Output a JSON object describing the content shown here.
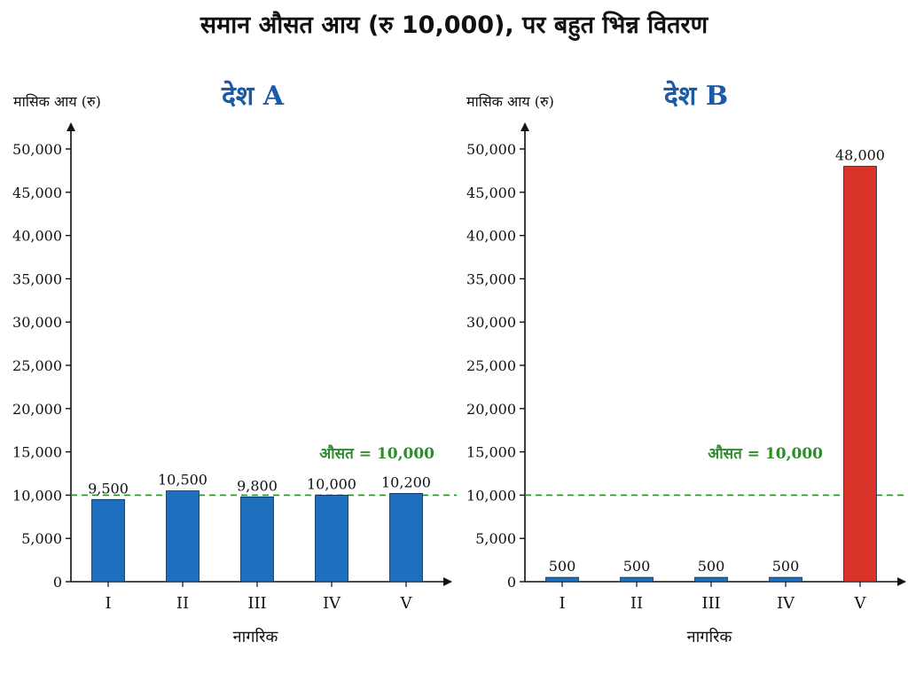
{
  "title": "समान औसत आय (रु 10,000), पर बहुत भिन्न वितरण",
  "colors": {
    "bar_blue": "#1f6fbf",
    "bar_red": "#d9332a",
    "mean_line": "#2e8b2e",
    "panel_title": "#1a5aa6",
    "axis": "#111111"
  },
  "chart_data": [
    {
      "type": "bar",
      "title": "देश A",
      "ylabel": "मासिक आय (रु)",
      "xlabel": "नागरिक",
      "categories": [
        "I",
        "II",
        "III",
        "IV",
        "V"
      ],
      "values": [
        9500,
        10500,
        9800,
        10000,
        10200
      ],
      "value_labels": [
        "9,500",
        "10,500",
        "9,800",
        "10,000",
        "10,200"
      ],
      "bar_colors": [
        "bar_blue",
        "bar_blue",
        "bar_blue",
        "bar_blue",
        "bar_blue"
      ],
      "ylim": [
        0,
        50000
      ],
      "yticks": [
        0,
        5000,
        10000,
        15000,
        20000,
        25000,
        30000,
        35000,
        40000,
        45000,
        50000
      ],
      "ytick_labels": [
        "0",
        "5,000",
        "10,000",
        "15,000",
        "20,000",
        "25,000",
        "30,000",
        "35,000",
        "40,000",
        "45,000",
        "50,000"
      ],
      "mean_value": 10000,
      "mean_label": "औसत = 10,000",
      "grid": false
    },
    {
      "type": "bar",
      "title": "देश B",
      "ylabel": "मासिक आय (रु)",
      "xlabel": "नागरिक",
      "categories": [
        "I",
        "II",
        "III",
        "IV",
        "V"
      ],
      "values": [
        500,
        500,
        500,
        500,
        48000
      ],
      "value_labels": [
        "500",
        "500",
        "500",
        "500",
        "48,000"
      ],
      "bar_colors": [
        "bar_blue",
        "bar_blue",
        "bar_blue",
        "bar_blue",
        "bar_red"
      ],
      "ylim": [
        0,
        50000
      ],
      "yticks": [
        0,
        5000,
        10000,
        15000,
        20000,
        25000,
        30000,
        35000,
        40000,
        45000,
        50000
      ],
      "ytick_labels": [
        "0",
        "5,000",
        "10,000",
        "15,000",
        "20,000",
        "25,000",
        "30,000",
        "35,000",
        "40,000",
        "45,000",
        "50,000"
      ],
      "mean_value": 10000,
      "mean_label": "औसत = 10,000",
      "grid": false
    }
  ]
}
